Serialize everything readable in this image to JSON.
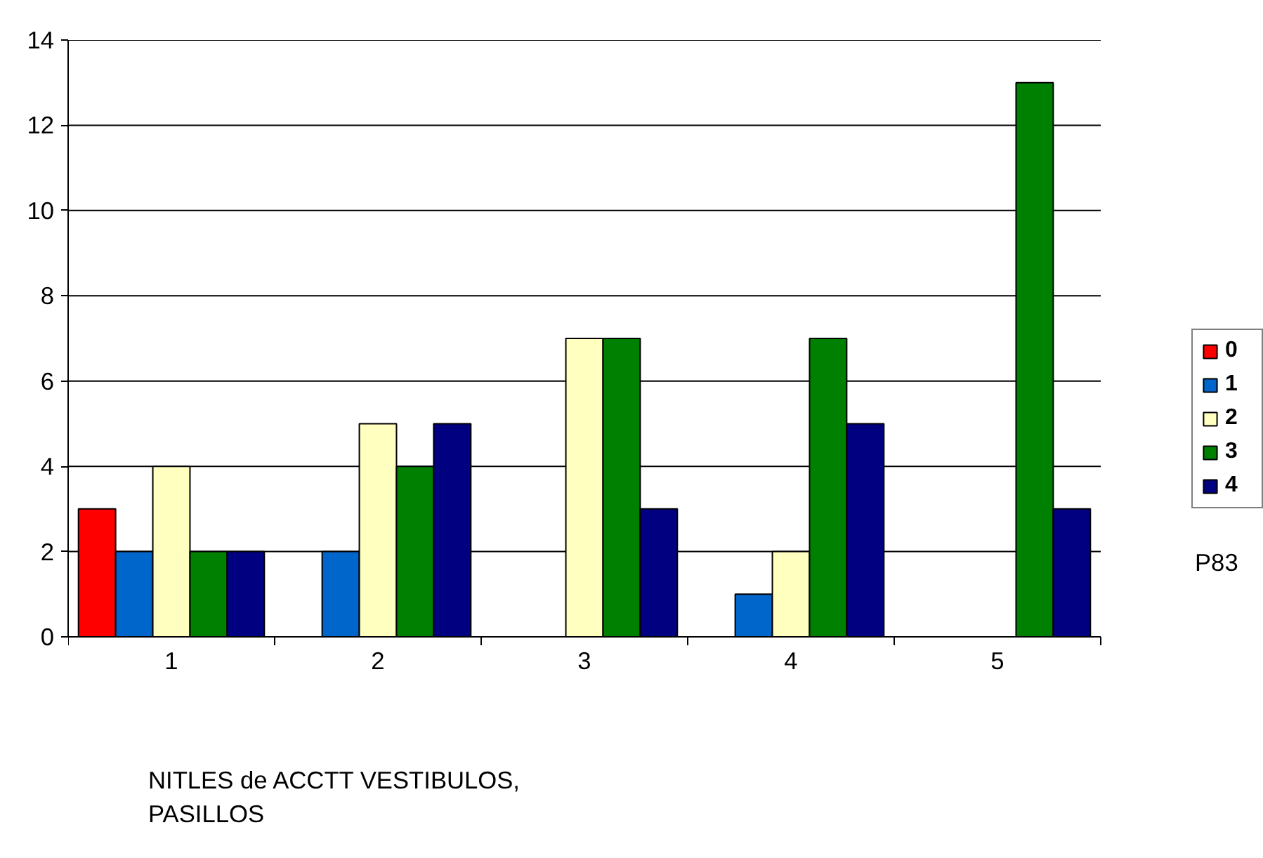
{
  "chart_data": {
    "type": "bar",
    "categories": [
      "1",
      "2",
      "3",
      "4",
      "5"
    ],
    "series": [
      {
        "name": "0",
        "color": "#ff0000",
        "values": [
          3,
          null,
          null,
          null,
          null
        ]
      },
      {
        "name": "1",
        "color": "#0066cc",
        "values": [
          2,
          2,
          null,
          1,
          null
        ]
      },
      {
        "name": "2",
        "color": "#ffffc0",
        "values": [
          4,
          5,
          7,
          2,
          null
        ]
      },
      {
        "name": "3",
        "color": "#008000",
        "values": [
          2,
          4,
          7,
          7,
          13
        ]
      },
      {
        "name": "4",
        "color": "#000080",
        "values": [
          2,
          5,
          3,
          5,
          3
        ]
      }
    ],
    "xlabel": "NITLES de ACCTT VESTIBULOS, PASILLOS",
    "annotations": [
      "P83"
    ],
    "ylim": [
      0,
      14
    ],
    "yticks": [
      0,
      2,
      4,
      6,
      8,
      10,
      12,
      14
    ],
    "grid": "y",
    "legend": "right"
  }
}
